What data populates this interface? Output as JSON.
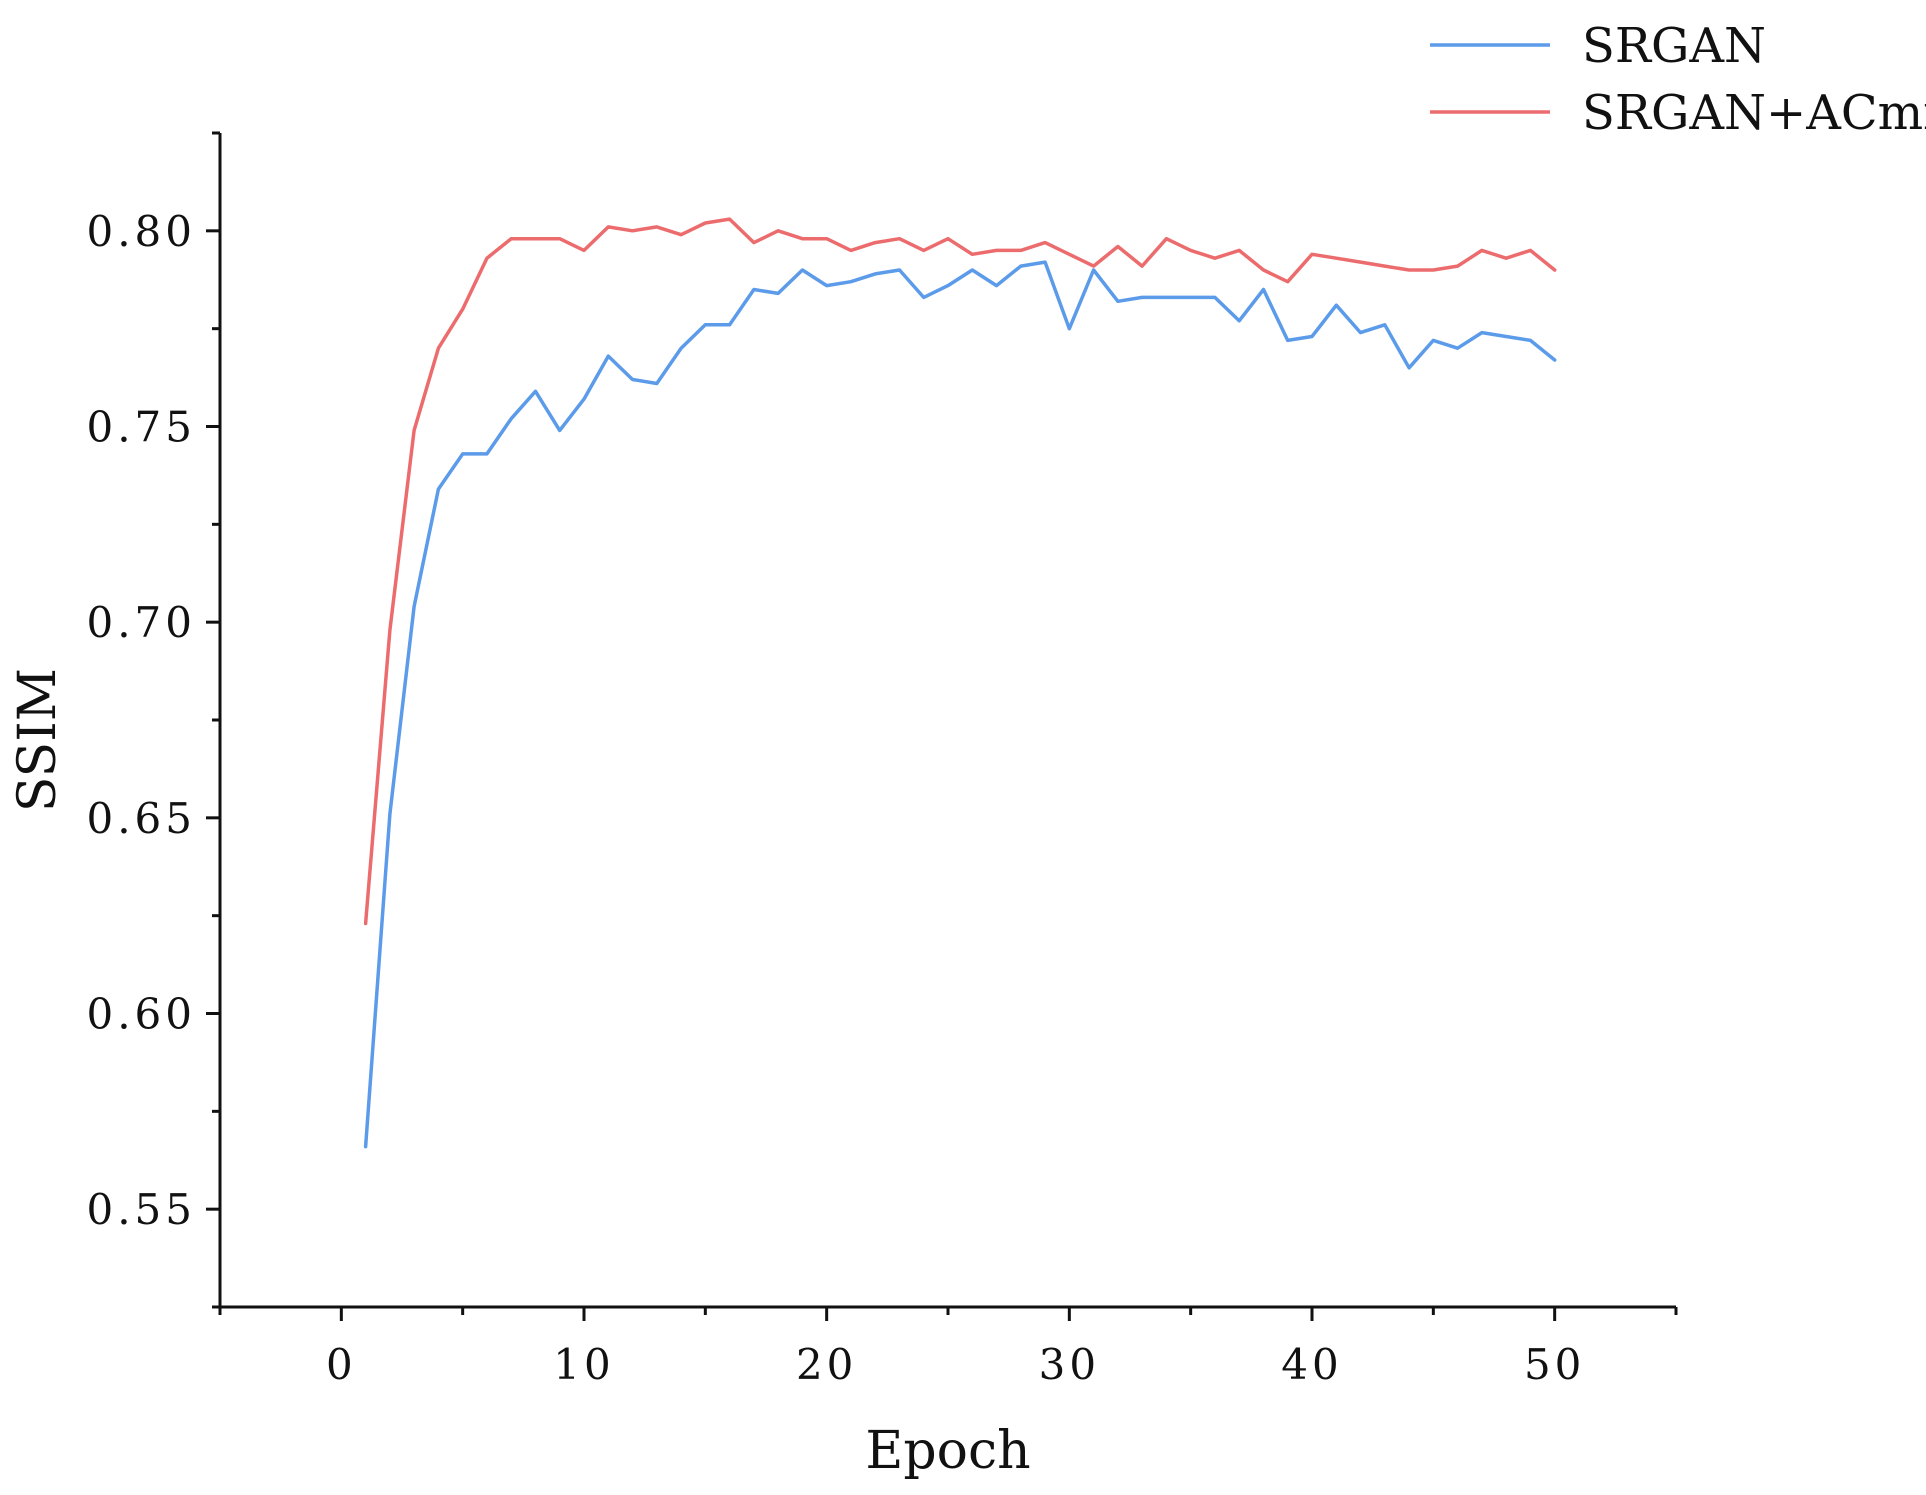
{
  "chart_data": {
    "type": "line",
    "xlabel": "Epoch",
    "ylabel": "SSIM",
    "xlim": [
      -5,
      55
    ],
    "ylim": [
      0.525,
      0.825
    ],
    "xticks": [
      0,
      10,
      20,
      30,
      40,
      50
    ],
    "xtick_labels": [
      "0",
      "10",
      "20",
      "30",
      "40",
      "50"
    ],
    "yticks": [
      0.55,
      0.6,
      0.65,
      0.7,
      0.75,
      0.8
    ],
    "ytick_labels": [
      "0.55",
      "0.60",
      "0.65",
      "0.70",
      "0.75",
      "0.80"
    ],
    "grid": false,
    "legend_position": "top-right",
    "x": [
      1,
      2,
      3,
      4,
      5,
      6,
      7,
      8,
      9,
      10,
      11,
      12,
      13,
      14,
      15,
      16,
      17,
      18,
      19,
      20,
      21,
      22,
      23,
      24,
      25,
      26,
      27,
      28,
      29,
      30,
      31,
      32,
      33,
      34,
      35,
      36,
      37,
      38,
      39,
      40,
      41,
      42,
      43,
      44,
      45,
      46,
      47,
      48,
      49,
      50
    ],
    "series": [
      {
        "name": "SRGAN",
        "color": "#5b9bea",
        "values": [
          0.566,
          0.651,
          0.704,
          0.734,
          0.743,
          0.743,
          0.752,
          0.759,
          0.749,
          0.757,
          0.768,
          0.762,
          0.761,
          0.77,
          0.776,
          0.776,
          0.785,
          0.784,
          0.79,
          0.786,
          0.787,
          0.789,
          0.79,
          0.783,
          0.786,
          0.79,
          0.786,
          0.791,
          0.792,
          0.775,
          0.79,
          0.782,
          0.783,
          0.783,
          0.783,
          0.783,
          0.777,
          0.785,
          0.772,
          0.773,
          0.781,
          0.774,
          0.776,
          0.765,
          0.772,
          0.77,
          0.774,
          0.773,
          0.772,
          0.767
        ]
      },
      {
        "name": "SRGAN+ACmix",
        "color": "#ec6c6e",
        "values": [
          0.623,
          0.698,
          0.749,
          0.77,
          0.78,
          0.793,
          0.798,
          0.798,
          0.798,
          0.795,
          0.801,
          0.8,
          0.801,
          0.799,
          0.802,
          0.803,
          0.797,
          0.8,
          0.798,
          0.798,
          0.795,
          0.797,
          0.798,
          0.795,
          0.798,
          0.794,
          0.795,
          0.795,
          0.797,
          0.794,
          0.791,
          0.796,
          0.791,
          0.798,
          0.795,
          0.793,
          0.795,
          0.79,
          0.787,
          0.794,
          0.793,
          0.792,
          0.791,
          0.79,
          0.79,
          0.791,
          0.795,
          0.793,
          0.795,
          0.79
        ]
      }
    ]
  }
}
